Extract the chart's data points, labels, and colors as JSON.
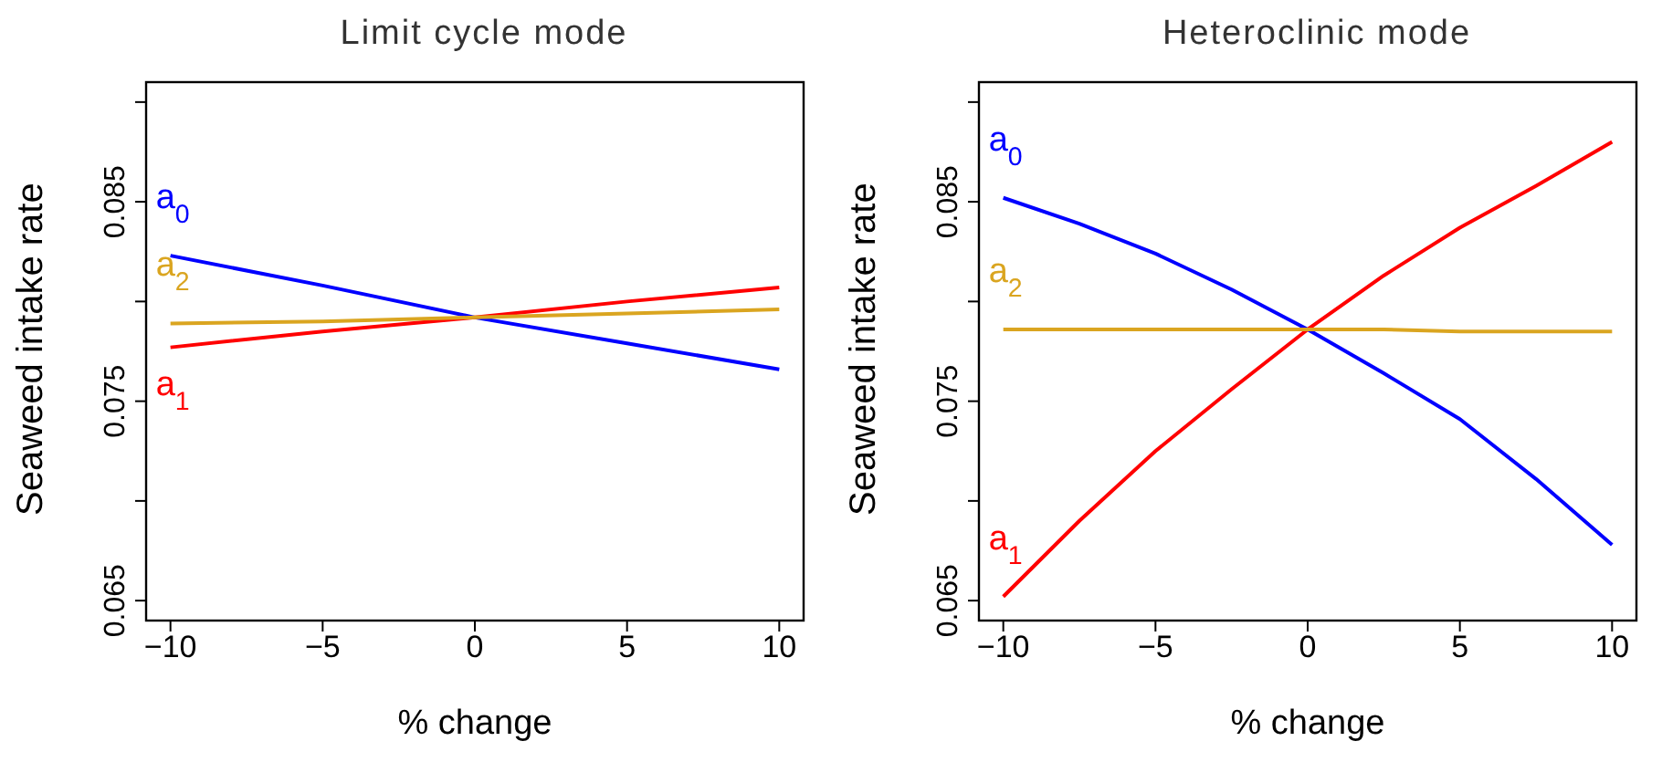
{
  "chart_data": [
    {
      "type": "line",
      "title": "Limit cycle mode",
      "xlabel": "% change",
      "ylabel": "Seaweed intake rate",
      "x": [
        -10,
        -5,
        0,
        5,
        10
      ],
      "series": [
        {
          "name": "a$_{0}$",
          "color": "#0000ff",
          "values": [
            0.0823,
            0.0808,
            0.0792,
            0.0779,
            0.0766
          ]
        },
        {
          "name": "a$_{1}$",
          "color": "#ff0000",
          "values": [
            0.0777,
            0.0785,
            0.0792,
            0.08,
            0.0807
          ]
        },
        {
          "name": "a$_{2}$",
          "color": "#daa520",
          "values": [
            0.0789,
            0.079,
            0.0792,
            0.0794,
            0.0796
          ]
        }
      ],
      "xlim": [
        -10.8,
        10.8
      ],
      "xticks": [
        -10,
        -5,
        0,
        5,
        10
      ],
      "ylim": [
        0.064,
        0.091
      ],
      "yticks": [
        0.065,
        {
          "value": 0.07,
          "label": null
        },
        0.075,
        {
          "value": 0.08,
          "label": null
        },
        0.085,
        {
          "value": 0.09,
          "label": null
        }
      ],
      "grid": false,
      "legend": false,
      "marker": "none",
      "line_style": "solid"
    },
    {
      "type": "line",
      "title": "Heteroclinic mode",
      "xlabel": "% change",
      "ylabel": "Seaweed intake rate",
      "x": [
        -10,
        -7.5,
        -5,
        -2.5,
        0,
        2.5,
        5,
        7.5,
        10
      ],
      "series": [
        {
          "name": "a$_{0}$",
          "color": "#0000ff",
          "values": [
            0.0852,
            0.0839,
            0.0824,
            0.0806,
            0.0786,
            0.0764,
            0.0741,
            0.0711,
            0.0678
          ]
        },
        {
          "name": "a$_{1}$",
          "color": "#ff0000",
          "values": [
            0.0652,
            0.069,
            0.0725,
            0.0756,
            0.0786,
            0.0813,
            0.0837,
            0.0858,
            0.088
          ]
        },
        {
          "name": "a$_{2}$",
          "color": "#daa520",
          "values": [
            0.0786,
            0.0786,
            0.0786,
            0.0786,
            0.0786,
            0.0786,
            0.0785,
            0.0785,
            0.0785
          ]
        }
      ],
      "xlim": [
        -10.8,
        10.8
      ],
      "xticks": [
        -10,
        -5,
        0,
        5,
        10
      ],
      "ylim": [
        0.064,
        0.091
      ],
      "yticks": [
        0.065,
        {
          "value": 0.07,
          "label": null
        },
        0.075,
        {
          "value": 0.08,
          "label": null
        },
        0.085,
        {
          "value": 0.09,
          "label": null
        }
      ],
      "grid": false,
      "legend": false,
      "marker": "none",
      "line_style": "solid"
    }
  ]
}
